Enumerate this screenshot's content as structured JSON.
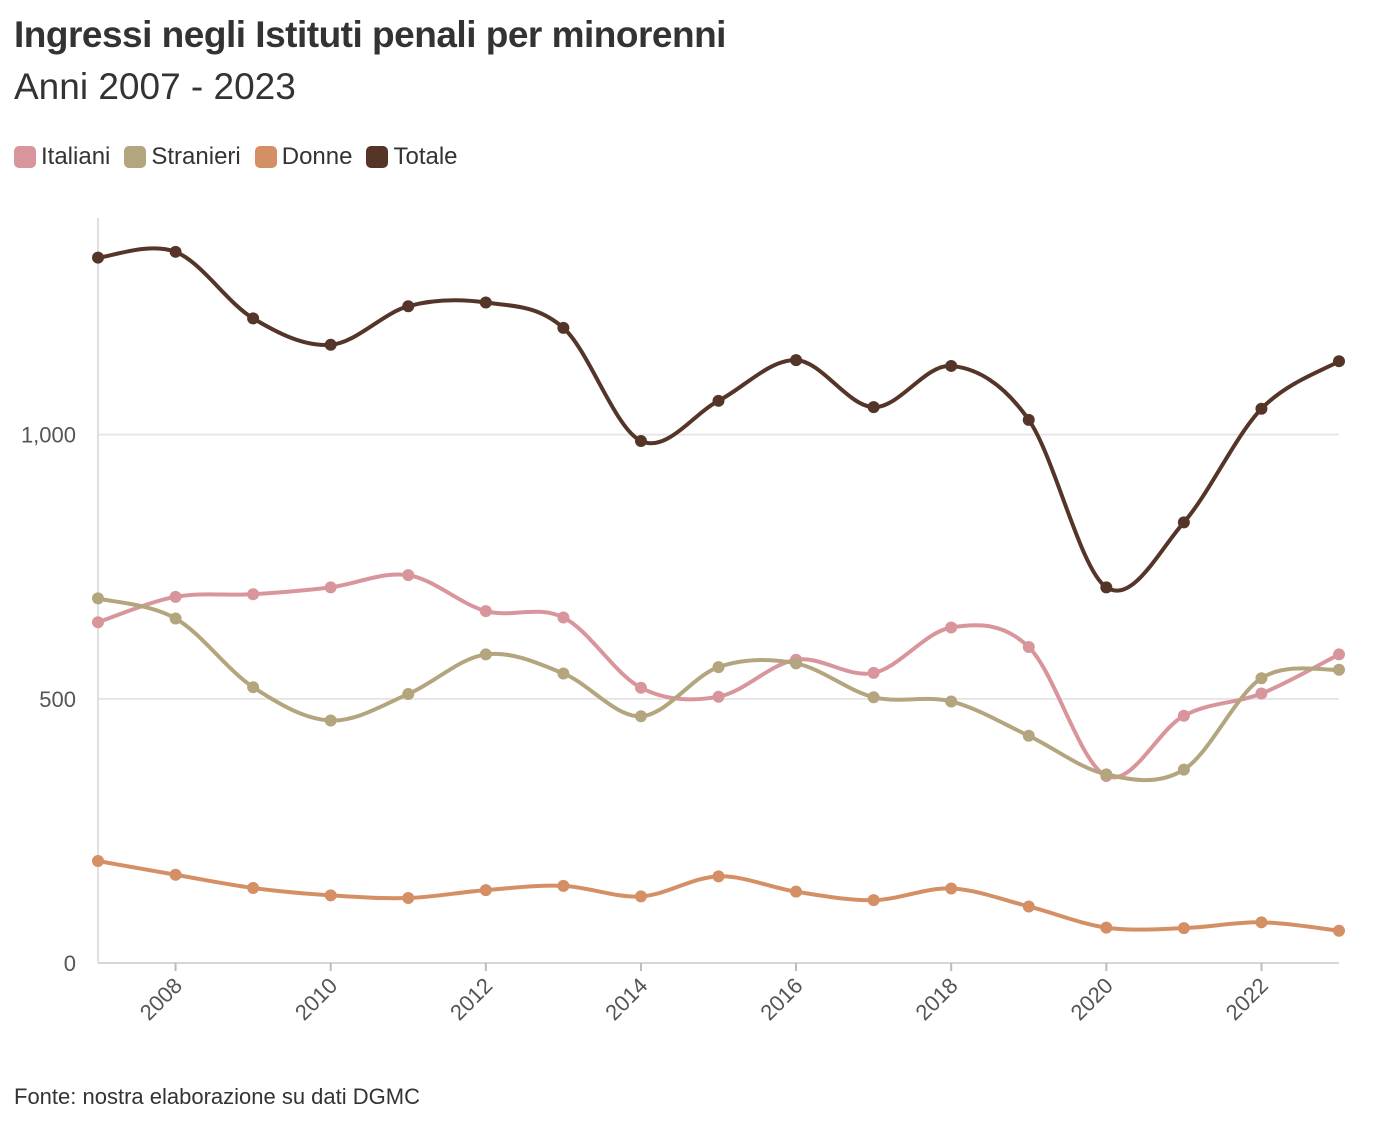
{
  "title": "Ingressi negli Istituti penali per minorenni",
  "subtitle": "Anni 2007 - 2023",
  "source": "Fonte: nostra elaborazione su dati DGMC",
  "legend": [
    {
      "label": "Italiani",
      "color": "#d9959c"
    },
    {
      "label": "Stranieri",
      "color": "#b3a67f"
    },
    {
      "label": "Donne",
      "color": "#d48f65"
    },
    {
      "label": "Totale",
      "color": "#543528"
    }
  ],
  "chart_data": {
    "type": "line",
    "x": [
      2007,
      2008,
      2009,
      2010,
      2011,
      2012,
      2013,
      2014,
      2015,
      2016,
      2017,
      2018,
      2019,
      2020,
      2021,
      2022,
      2023
    ],
    "xlim": [
      2007,
      2023
    ],
    "ylim": [
      0,
      1410
    ],
    "x_ticks": [
      "2008",
      "2010",
      "2012",
      "2014",
      "2016",
      "2018",
      "2020",
      "2022"
    ],
    "y_ticks": [
      {
        "value": 0,
        "label": "0"
      },
      {
        "value": 500,
        "label": "500"
      },
      {
        "value": 1000,
        "label": "1,000"
      }
    ],
    "grid": "horizontal",
    "legend_position": "top-left",
    "series": [
      {
        "name": "Italiani",
        "color": "#d9959c",
        "values": [
          645,
          693,
          698,
          711,
          734,
          666,
          654,
          521,
          504,
          574,
          549,
          635,
          598,
          354,
          468,
          510,
          584
        ]
      },
      {
        "name": "Stranieri",
        "color": "#b3a67f",
        "values": [
          690,
          652,
          522,
          459,
          509,
          584,
          548,
          467,
          560,
          567,
          503,
          495,
          430,
          357,
          366,
          539,
          555
        ]
      },
      {
        "name": "Donne",
        "color": "#d48f65",
        "values": [
          193,
          167,
          142,
          128,
          123,
          138,
          146,
          126,
          164,
          135,
          119,
          141,
          107,
          67,
          66,
          77,
          61
        ]
      },
      {
        "name": "Totale",
        "color": "#543528",
        "values": [
          1335,
          1346,
          1220,
          1170,
          1243,
          1250,
          1202,
          988,
          1064,
          1141,
          1052,
          1130,
          1028,
          711,
          834,
          1049,
          1139
        ]
      }
    ]
  }
}
